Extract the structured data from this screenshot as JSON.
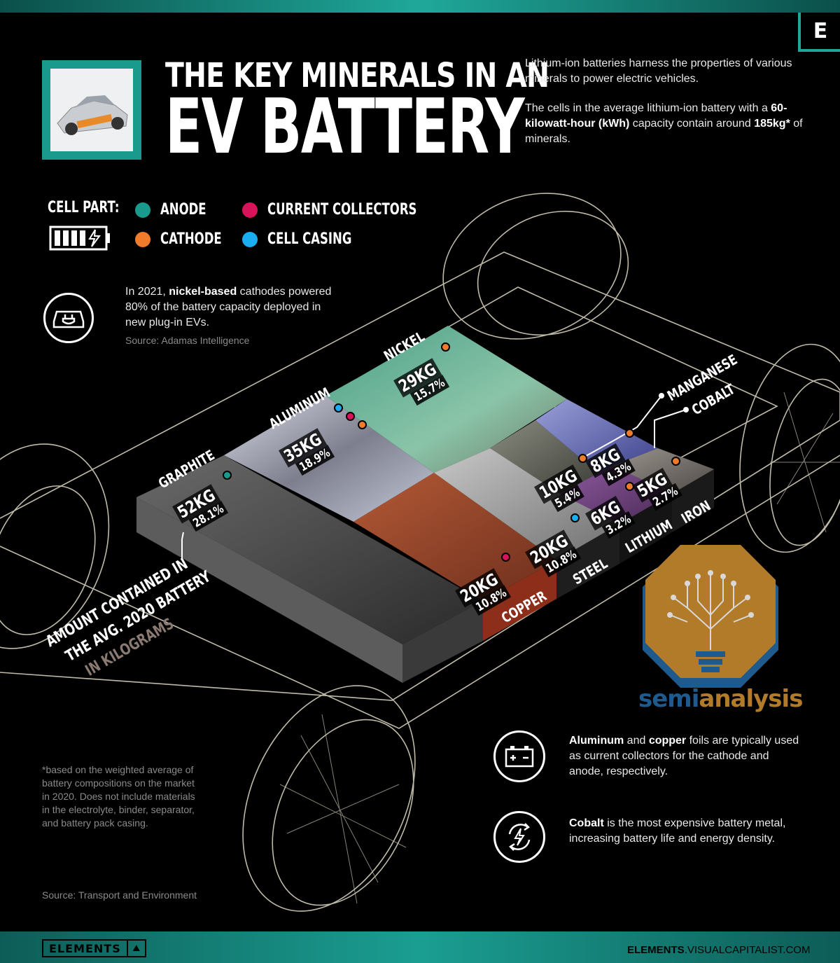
{
  "header": {
    "brand_mark": "E",
    "title_line1": "THE KEY MINERALS IN AN",
    "title_line2": "EV BATTERY"
  },
  "intro": {
    "p1": "Lithium-ion batteries harness the properties of various minerals to power electric vehicles.",
    "p2_a": "The cells in the average lithium-ion battery with a ",
    "p2_b": "60-kilowatt-hour (kWh)",
    "p2_c": " capacity contain around ",
    "p2_d": "185kg*",
    "p2_e": " of minerals."
  },
  "legend": {
    "title": "CELL PART:",
    "items": [
      {
        "label": "ANODE",
        "color": "#1a9a8d"
      },
      {
        "label": "CATHODE",
        "color": "#f07b2a"
      },
      {
        "label": "CURRENT COLLECTORS",
        "color": "#d8135a"
      },
      {
        "label": "CELL CASING",
        "color": "#1aaef0"
      }
    ]
  },
  "fact_nickel": {
    "a": "In 2021, ",
    "b": "nickel-based",
    "c": " cathodes powered 80% of the battery capacity deployed in new plug-in EVs.",
    "source": "Source: Adamas Intelligence"
  },
  "minerals": [
    {
      "name": "GRAPHITE",
      "kg": "52KG",
      "pct": "28.1%",
      "part": "anode"
    },
    {
      "name": "ALUMINUM",
      "kg": "35KG",
      "pct": "18.9%",
      "part": "casing, collectors, cathode"
    },
    {
      "name": "NICKEL",
      "kg": "29KG",
      "pct": "15.7%",
      "part": "cathode"
    },
    {
      "name": "COPPER",
      "kg": "20KG",
      "pct": "10.8%",
      "part": "collectors"
    },
    {
      "name": "STEEL",
      "kg": "20KG",
      "pct": "10.8%",
      "part": "casing"
    },
    {
      "name": "MANGANESE",
      "kg": "10KG",
      "pct": "5.4%",
      "part": "cathode"
    },
    {
      "name": "COBALT",
      "kg": "8KG",
      "pct": "4.3%",
      "part": "cathode"
    },
    {
      "name": "LITHIUM",
      "kg": "6KG",
      "pct": "3.2%",
      "part": "cathode"
    },
    {
      "name": "IRON",
      "kg": "5KG",
      "pct": "2.7%",
      "part": "cathode"
    }
  ],
  "amount_label": {
    "line1": "AMOUNT CONTAINED IN",
    "line2": "THE AVG. 2020 BATTERY",
    "line3": "IN KILOGRAMS"
  },
  "watermark": {
    "part1": "semi",
    "part2": "analysis"
  },
  "fact_foils": {
    "a": "Aluminum",
    "b": " and ",
    "c": "copper",
    "d": " foils are typically used as current collectors for the cathode and anode, respectively."
  },
  "fact_cobalt": {
    "a": "Cobalt",
    "b": " is the most expensive battery metal, increasing battery life and energy density."
  },
  "footnote": "*based on the weighted average of battery compositions on the market in 2020. Does not include materials in the electrolyte, binder, separator, and battery pack casing.",
  "source": "Source:  Transport and Environment",
  "footer": {
    "brand": "ELEMENTS",
    "site_bold": "ELEMENTS",
    "site_rest": ".VISUALCAPITALIST.COM"
  }
}
